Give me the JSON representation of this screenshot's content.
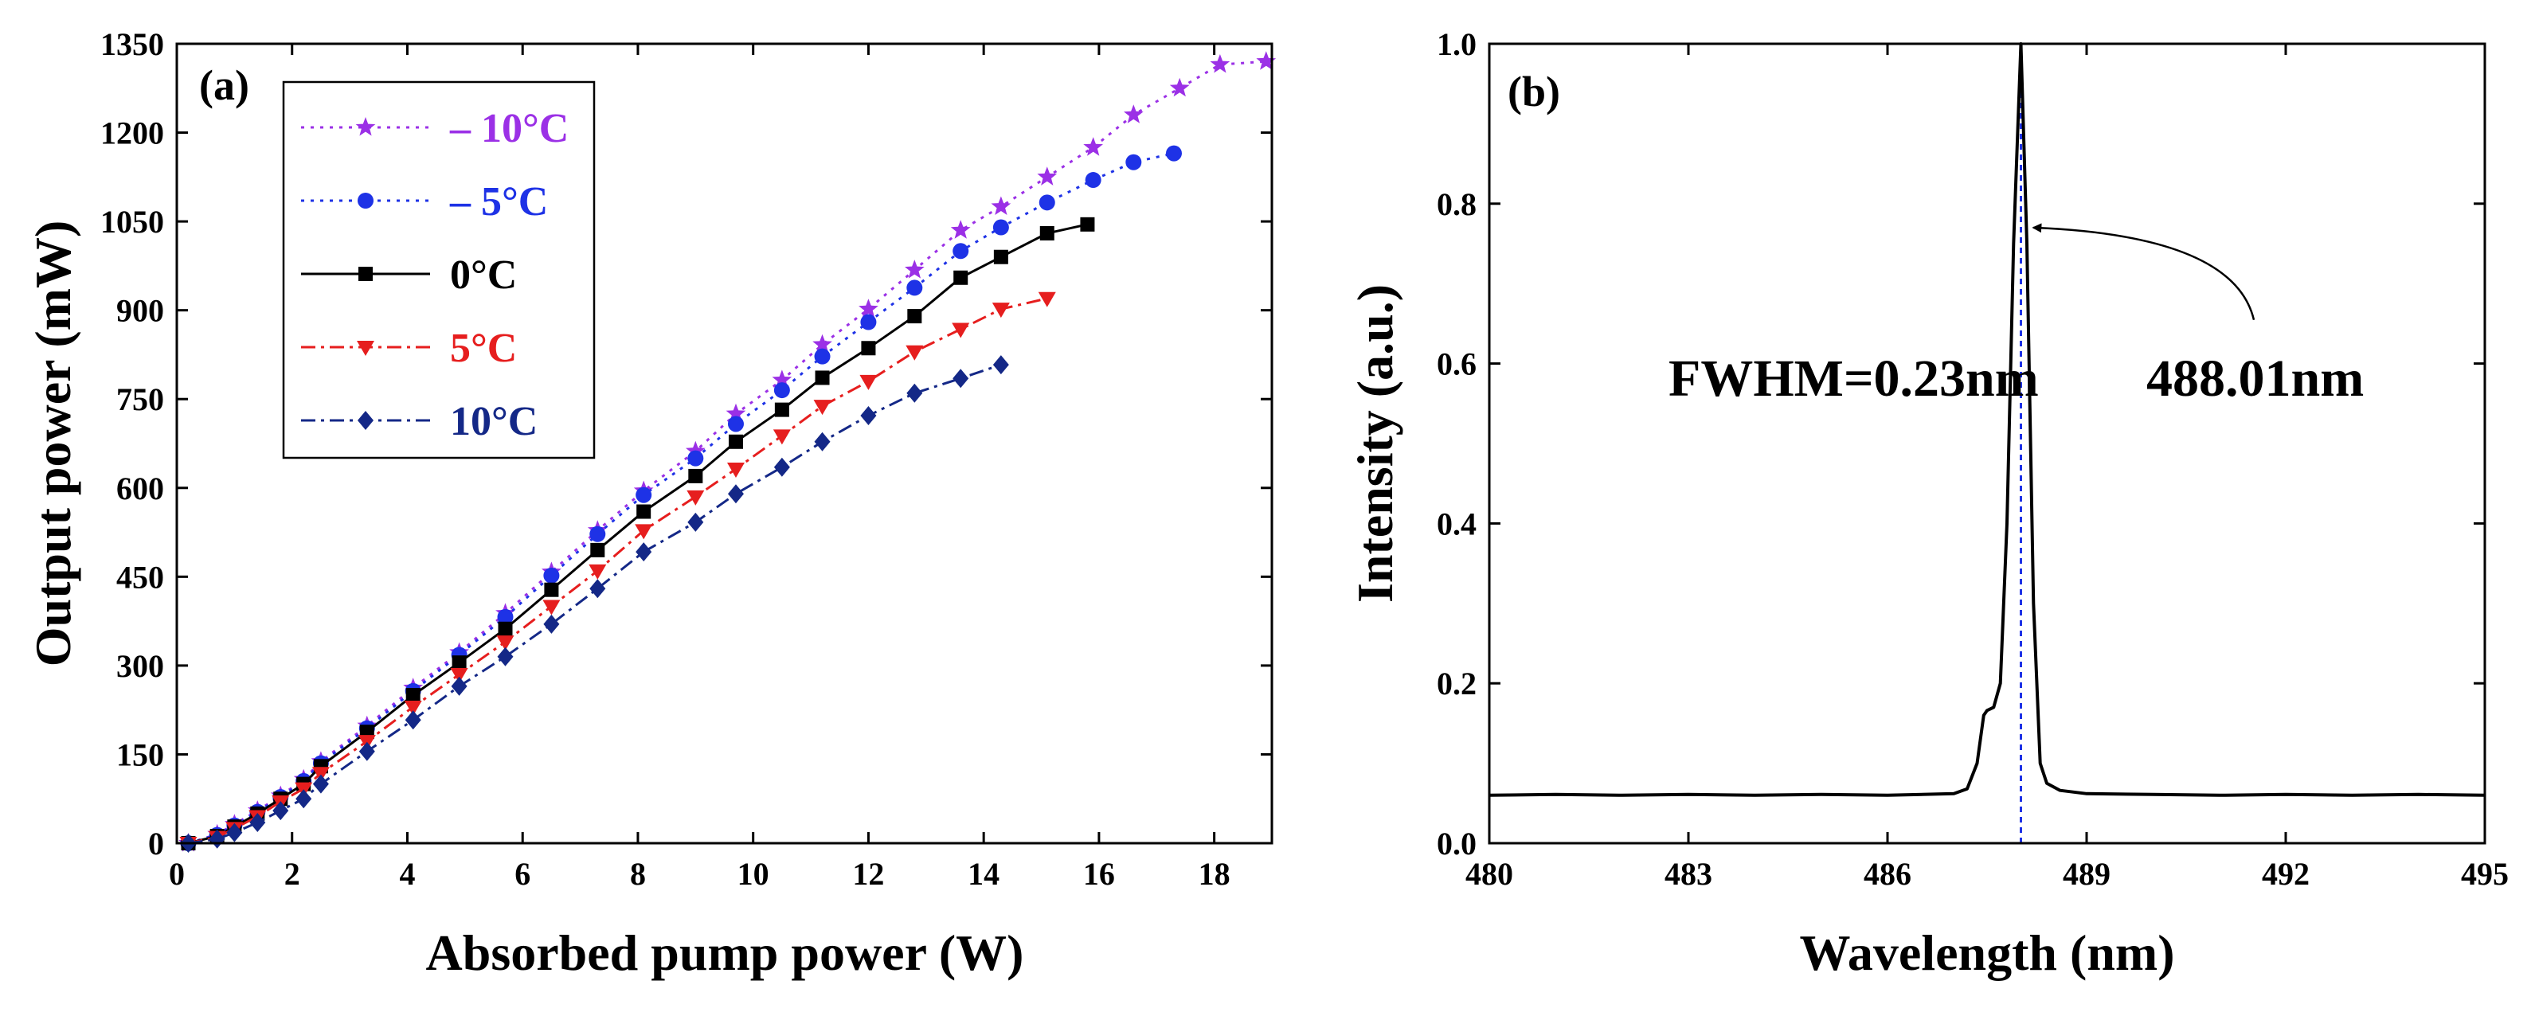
{
  "chart_data": [
    {
      "type": "line",
      "panel_label": "(a)",
      "xlabel": "Absorbed pump power (W)",
      "ylabel": "Output power (mW)",
      "xlim": [
        0,
        19
      ],
      "ylim": [
        0,
        1350
      ],
      "xticks": [
        0,
        2,
        4,
        6,
        8,
        10,
        12,
        14,
        16,
        18
      ],
      "yticks": [
        0,
        150,
        300,
        450,
        600,
        750,
        900,
        1050,
        1200,
        1350
      ],
      "xtick_labels": [
        "0",
        "2",
        "4",
        "6",
        "8",
        "10",
        "12",
        "14",
        "16",
        "18"
      ],
      "ytick_labels": [
        "0",
        "150",
        "300",
        "450",
        "600",
        "750",
        "900",
        "1050",
        "1200",
        "1350"
      ],
      "legend_position": "top-left",
      "series": [
        {
          "name": "– 10°C",
          "color": "#9B30E6",
          "marker": "star",
          "dash": "dotted",
          "x": [
            0.2,
            0.7,
            1.0,
            1.4,
            1.8,
            2.2,
            2.5,
            3.3,
            4.1,
            4.9,
            5.7,
            6.5,
            7.3,
            8.1,
            9.0,
            9.7,
            10.5,
            11.2,
            12.0,
            12.8,
            13.6,
            14.3,
            15.1,
            15.9,
            16.6,
            17.4,
            18.1,
            18.9
          ],
          "values": [
            0,
            15,
            32,
            55,
            80,
            108,
            138,
            198,
            262,
            322,
            388,
            458,
            528,
            595,
            662,
            725,
            782,
            842,
            902,
            968,
            1035,
            1075,
            1125,
            1175,
            1230,
            1275,
            1315,
            1320
          ]
        },
        {
          "name": "– 5°C",
          "color": "#1E32E6",
          "marker": "circle",
          "dash": "dotted",
          "x": [
            0.2,
            0.7,
            1.0,
            1.4,
            1.8,
            2.2,
            2.5,
            3.3,
            4.1,
            4.9,
            5.7,
            6.5,
            7.3,
            8.1,
            9.0,
            9.7,
            10.5,
            11.2,
            12.0,
            12.8,
            13.6,
            14.3,
            15.1,
            15.9,
            16.6,
            17.3
          ],
          "values": [
            0,
            14,
            30,
            53,
            78,
            105,
            135,
            194,
            257,
            318,
            382,
            452,
            522,
            588,
            650,
            708,
            765,
            822,
            880,
            938,
            1000,
            1040,
            1082,
            1120,
            1150,
            1165
          ]
        },
        {
          "name": "0°C",
          "color": "#000000",
          "marker": "square",
          "dash": "solid",
          "x": [
            0.2,
            0.7,
            1.0,
            1.4,
            1.8,
            2.2,
            2.5,
            3.3,
            4.1,
            4.9,
            5.7,
            6.5,
            7.3,
            8.1,
            9.0,
            9.7,
            10.5,
            11.2,
            12.0,
            12.8,
            13.6,
            14.3,
            15.1,
            15.8
          ],
          "values": [
            0,
            12,
            28,
            50,
            75,
            100,
            130,
            188,
            250,
            305,
            362,
            428,
            495,
            560,
            620,
            678,
            732,
            786,
            836,
            890,
            955,
            990,
            1030,
            1045
          ]
        },
        {
          "name": "5°C",
          "color": "#E61E1E",
          "marker": "triangle-down",
          "dash": "dashdot",
          "x": [
            0.2,
            0.7,
            1.0,
            1.4,
            1.8,
            2.2,
            2.5,
            3.3,
            4.1,
            4.9,
            5.7,
            6.5,
            7.3,
            8.1,
            9.0,
            9.7,
            10.5,
            11.2,
            12.0,
            12.8,
            13.6,
            14.3,
            15.1
          ],
          "values": [
            0,
            10,
            25,
            45,
            70,
            92,
            118,
            172,
            230,
            285,
            340,
            400,
            460,
            528,
            585,
            632,
            688,
            738,
            780,
            830,
            868,
            902,
            920
          ]
        },
        {
          "name": "10°C",
          "color": "#142887",
          "marker": "diamond",
          "dash": "dashdot",
          "x": [
            0.2,
            0.7,
            1.0,
            1.4,
            1.8,
            2.2,
            2.5,
            3.3,
            4.1,
            4.9,
            5.7,
            6.5,
            7.3,
            8.1,
            9.0,
            9.7,
            10.5,
            11.2,
            12.0,
            12.8,
            13.6,
            14.3
          ],
          "values": [
            0,
            7,
            18,
            35,
            55,
            75,
            100,
            155,
            208,
            265,
            315,
            370,
            430,
            492,
            542,
            590,
            635,
            678,
            722,
            760,
            785,
            808
          ]
        }
      ]
    },
    {
      "type": "line",
      "panel_label": "(b)",
      "xlabel": "Wavelength (nm)",
      "ylabel": "Intensity (a.u.)",
      "xlim": [
        480,
        495
      ],
      "ylim": [
        0,
        1.0
      ],
      "xticks": [
        480,
        483,
        486,
        489,
        492,
        495
      ],
      "yticks": [
        0,
        0.2,
        0.4,
        0.6,
        0.8,
        1.0
      ],
      "xtick_labels": [
        "480",
        "483",
        "486",
        "489",
        "492",
        "495"
      ],
      "ytick_labels": [
        "0.0",
        "0.2",
        "0.4",
        "0.6",
        "0.8",
        "1.0"
      ],
      "series": [
        {
          "name": "Spectrum",
          "color": "#000000",
          "x": [
            480,
            481,
            482,
            483,
            484,
            485,
            486,
            487,
            487.2,
            487.35,
            487.45,
            487.5,
            487.6,
            487.7,
            487.8,
            487.9,
            488.01,
            488.1,
            488.2,
            488.3,
            488.4,
            488.6,
            489,
            490,
            491,
            492,
            493,
            494,
            495
          ],
          "values": [
            0.06,
            0.061,
            0.06,
            0.061,
            0.06,
            0.061,
            0.06,
            0.062,
            0.068,
            0.1,
            0.16,
            0.166,
            0.17,
            0.2,
            0.4,
            0.75,
            1.0,
            0.75,
            0.3,
            0.1,
            0.075,
            0.066,
            0.062,
            0.061,
            0.06,
            0.061,
            0.06,
            0.061,
            0.06
          ]
        }
      ],
      "peak_marker": {
        "x": 488.01,
        "color": "#1E32E6"
      },
      "annotations": [
        {
          "text": "FWHM=0.23nm",
          "x": 482.7,
          "y": 0.56
        },
        {
          "text": "488.01nm",
          "x": 489.9,
          "y": 0.56,
          "arrow_to": {
            "x": 488.2,
            "y": 0.77
          }
        }
      ]
    }
  ]
}
